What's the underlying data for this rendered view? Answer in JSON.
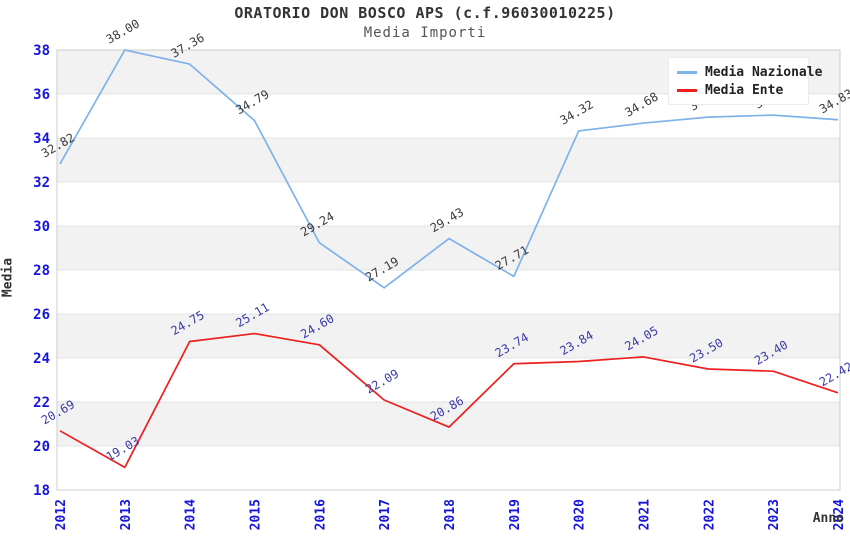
{
  "chart_data": {
    "type": "line",
    "title": "ORATORIO DON BOSCO APS (c.f.96030010225)",
    "subtitle": "Media Importi",
    "xlabel": "Anno",
    "ylabel": "Media",
    "x": [
      2012,
      2013,
      2014,
      2015,
      2016,
      2017,
      2018,
      2019,
      2020,
      2021,
      2022,
      2023,
      2024
    ],
    "ylim": [
      18,
      38
    ],
    "yticks": [
      18,
      20,
      22,
      24,
      26,
      28,
      30,
      32,
      34,
      36,
      38
    ],
    "grid": "horizontal-bands",
    "legend_position": "top-right",
    "series": [
      {
        "name": "Media Nazionale",
        "color": "#7fb2e8",
        "label_color": "#3a3a3a",
        "values": [
          32.82,
          38.0,
          37.36,
          34.79,
          29.24,
          27.19,
          29.43,
          27.71,
          34.32,
          34.68,
          34.95,
          35.04,
          34.83
        ]
      },
      {
        "name": "Media Ente",
        "color": "#ee1f1f",
        "label_color": "#3939a8",
        "values": [
          20.69,
          19.03,
          24.75,
          25.11,
          24.6,
          22.09,
          20.86,
          23.74,
          23.84,
          24.05,
          23.5,
          23.4,
          22.42
        ]
      }
    ],
    "colors": {
      "band": "#f2f2f2",
      "gridline": "#e3e3e3",
      "plot_border": "#cccccc",
      "tick_label": "#1515dd"
    }
  }
}
